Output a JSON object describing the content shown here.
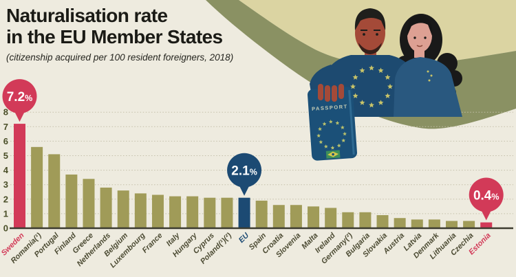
{
  "header": {
    "title_line1": "Naturalisation rate",
    "title_line2": "in the EU Member States",
    "subtitle": "(citizenship acquired per 100 resident foreigners, 2018)"
  },
  "illustration": {
    "passport_label": "PASSPORT"
  },
  "colors": {
    "background": "#eeebdf",
    "beige_shape": "#dbd4a2",
    "olive_wave": "#8a9163",
    "bar_default": "#a09b58",
    "bar_red": "#d23a58",
    "bar_blue": "#1c4a73",
    "gridline": "#c3bfa9",
    "axis_line": "#3c3c30",
    "axis_text": "#4a4f28",
    "label_text": "#4c4b33",
    "title_text": "#1b1b16"
  },
  "chart_data": {
    "type": "bar",
    "title": "Naturalisation rate in the EU Member States",
    "subtitle": "(citizenship acquired per 100 resident foreigners, 2018)",
    "xlabel": "",
    "ylabel": "citizenships acquired per 100 resident foreigners",
    "ylim": [
      0,
      8
    ],
    "yticks": [
      0,
      1,
      2,
      3,
      4,
      5,
      6,
      7,
      8
    ],
    "grid": "horizontal dotted",
    "legend": "none",
    "categories": [
      "Sweden",
      "Romania(¹)",
      "Portugal",
      "Finland",
      "Greece",
      "Netherlands",
      "Belgium",
      "Luxembourg",
      "France",
      "Italy",
      "Hungary",
      "Cyprus",
      "Poland(¹)(²)",
      "EU",
      "Spain",
      "Croatia",
      "Slovenia",
      "Malta",
      "Ireland",
      "Germany(²)",
      "Bulgaria",
      "Slovakia",
      "Austria",
      "Latvia",
      "Denmark",
      "Lithuania",
      "Czechia",
      "Estonia"
    ],
    "values": [
      7.2,
      5.6,
      5.1,
      3.7,
      3.4,
      2.8,
      2.6,
      2.4,
      2.3,
      2.2,
      2.2,
      2.1,
      2.1,
      2.1,
      1.9,
      1.6,
      1.6,
      1.5,
      1.4,
      1.1,
      1.1,
      0.9,
      0.7,
      0.6,
      0.6,
      0.5,
      0.5,
      0.4
    ],
    "bar_colors": {
      "Sweden": "red",
      "EU": "blue",
      "Estonia": "red"
    },
    "callouts": [
      {
        "category": "Sweden",
        "value_label": "7.2",
        "unit": "%",
        "color": "red"
      },
      {
        "category": "EU",
        "value_label": "2.1",
        "unit": "%",
        "color": "blue"
      },
      {
        "category": "Estonia",
        "value_label": "0.4",
        "unit": "%",
        "color": "red"
      }
    ]
  }
}
